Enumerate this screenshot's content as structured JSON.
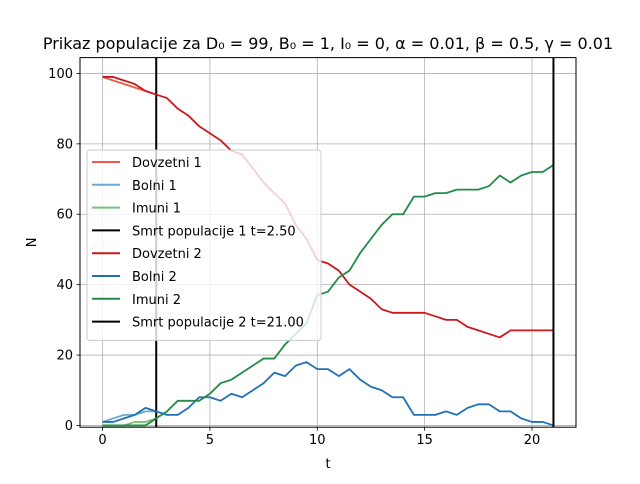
{
  "chart_data": {
    "type": "line",
    "title": "Prikaz populacije za D₀ = 99, B₀ = 1, I₀ = 0, α = 0.01, β = 0.5, γ = 0.01",
    "xlabel": "t",
    "ylabel": "N",
    "xlim": [
      -1.05,
      22.05
    ],
    "ylim": [
      -0.5,
      104.5
    ],
    "xticks": [
      0,
      5,
      10,
      15,
      20
    ],
    "yticks": [
      0,
      20,
      40,
      60,
      80,
      100
    ],
    "grid": true,
    "legend_position": "center-left",
    "series": [
      {
        "name": "Dovzetni 1",
        "color": "#ef5a48",
        "x": [
          0,
          0.5,
          1,
          1.5,
          2,
          2.5
        ],
        "y": [
          99,
          98,
          97,
          96,
          95,
          94
        ]
      },
      {
        "name": "Bolni 1",
        "color": "#6aa9d6",
        "x": [
          0,
          0.5,
          1,
          1.5,
          2,
          2.5
        ],
        "y": [
          1,
          2,
          3,
          3,
          4,
          4
        ]
      },
      {
        "name": "Imuni 1",
        "color": "#73c476",
        "x": [
          0,
          0.5,
          1,
          1.5,
          2,
          2.5
        ],
        "y": [
          0,
          0,
          0,
          1,
          1,
          2
        ]
      },
      {
        "name": "Smrt populacije 1 t=2.50",
        "color": "#000000",
        "vline": 2.5
      },
      {
        "name": "Dovzetni 2",
        "color": "#cb181d",
        "x": [
          0,
          0.5,
          1,
          1.5,
          2,
          2.5,
          3,
          3.5,
          4,
          4.5,
          5,
          5.5,
          6,
          6.5,
          7,
          7.5,
          8,
          8.5,
          9,
          9.5,
          10,
          10.5,
          11,
          11.5,
          12,
          12.5,
          13,
          13.5,
          14,
          14.5,
          15,
          15.5,
          16,
          16.5,
          17,
          17.5,
          18,
          18.5,
          19,
          19.5,
          20,
          20.5,
          21
        ],
        "y": [
          99,
          99,
          98,
          97,
          95,
          94,
          93,
          90,
          88,
          85,
          83,
          81,
          78,
          77,
          73,
          69,
          66,
          63,
          57,
          53,
          47,
          46,
          44,
          40,
          38,
          36,
          33,
          32,
          32,
          32,
          32,
          31,
          30,
          30,
          28,
          27,
          26,
          25,
          27,
          27,
          27,
          27,
          27
        ]
      },
      {
        "name": "Bolni 2",
        "color": "#2171b5",
        "x": [
          0,
          0.5,
          1,
          1.5,
          2,
          2.5,
          3,
          3.5,
          4,
          4.5,
          5,
          5.5,
          6,
          6.5,
          7,
          7.5,
          8,
          8.5,
          9,
          9.5,
          10,
          10.5,
          11,
          11.5,
          12,
          12.5,
          13,
          13.5,
          14,
          14.5,
          15,
          15.5,
          16,
          16.5,
          17,
          17.5,
          18,
          18.5,
          19,
          19.5,
          20,
          20.5,
          21
        ],
        "y": [
          1,
          1,
          2,
          3,
          5,
          4,
          3,
          3,
          5,
          8,
          8,
          7,
          9,
          8,
          10,
          12,
          15,
          14,
          17,
          18,
          16,
          16,
          14,
          16,
          13,
          11,
          10,
          8,
          8,
          3,
          3,
          3,
          4,
          3,
          5,
          6,
          6,
          4,
          4,
          2,
          1,
          1,
          0
        ]
      },
      {
        "name": "Imuni 2",
        "color": "#238b45",
        "x": [
          0,
          0.5,
          1,
          1.5,
          2,
          2.5,
          3,
          3.5,
          4,
          4.5,
          5,
          5.5,
          6,
          6.5,
          7,
          7.5,
          8,
          8.5,
          9,
          9.5,
          10,
          10.5,
          11,
          11.5,
          12,
          12.5,
          13,
          13.5,
          14,
          14.5,
          15,
          15.5,
          16,
          16.5,
          17,
          17.5,
          18,
          18.5,
          19,
          19.5,
          20,
          20.5,
          21
        ],
        "y": [
          0,
          0,
          0,
          0,
          0,
          2,
          4,
          7,
          7,
          7,
          9,
          12,
          13,
          15,
          17,
          19,
          19,
          23,
          26,
          29,
          37,
          38,
          42,
          44,
          49,
          53,
          57,
          60,
          60,
          65,
          65,
          66,
          66,
          67,
          67,
          67,
          68,
          71,
          69,
          71,
          72,
          72,
          74
        ]
      },
      {
        "name": "Smrt populacije 2 t=21.00",
        "color": "#000000",
        "vline": 21
      }
    ]
  }
}
